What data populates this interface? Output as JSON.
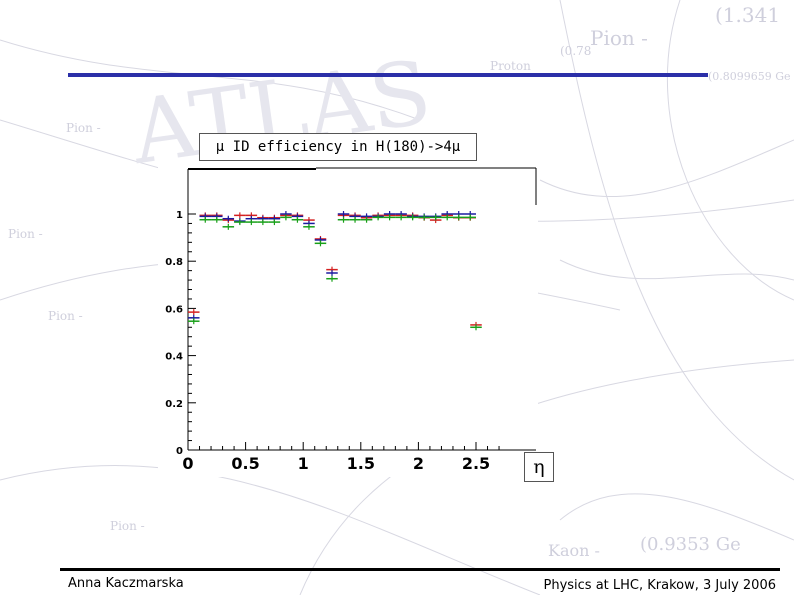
{
  "slide": {
    "footer_left": "Anna Kaczmarska",
    "footer_right": "Physics at LHC, Krakow,  3 July 2006",
    "rule_color": "#2b2fa8"
  },
  "background": {
    "watermark": "ATLAS",
    "labels": [
      "Pion -",
      "Proton",
      "(0.78",
      "(1.341",
      "Pion -",
      "Pion -",
      "Pion -",
      "Pion -",
      "Kaon -",
      "(0.9353 Ge",
      "(0.8099659 Ge"
    ]
  },
  "chart_data": {
    "type": "scatter",
    "title": "μ ID efficiency in H(180)->4μ",
    "xlabel": "η",
    "ylabel": "",
    "xlim": [
      0,
      2.75
    ],
    "ylim": [
      0,
      1.2
    ],
    "xticks": [
      0,
      0.5,
      1,
      1.5,
      2,
      2.5
    ],
    "xtick_labels": [
      "0",
      "0.5",
      "1",
      "1.5",
      "2",
      "2.5"
    ],
    "yticks": [
      0,
      0.2,
      0.4,
      0.6,
      0.8,
      1
    ],
    "ytick_labels": [
      "0",
      "0.2",
      "0.4",
      "0.6",
      "0.8",
      "1"
    ],
    "error_bars": true,
    "grid": false,
    "x": [
      0.05,
      0.15,
      0.25,
      0.35,
      0.45,
      0.55,
      0.65,
      0.75,
      0.85,
      0.95,
      1.05,
      1.15,
      1.25,
      1.35,
      1.45,
      1.55,
      1.65,
      1.75,
      1.85,
      1.95,
      2.05,
      2.15,
      2.25,
      2.35,
      2.45
    ],
    "series": [
      {
        "color": "#d42020",
        "values": [
          0.58,
          0.99,
          0.99,
          0.97,
          0.99,
          0.99,
          0.98,
          0.98,
          0.99,
          0.99,
          0.97,
          0.89,
          0.76,
          0.99,
          0.99,
          0.98,
          0.99,
          0.99,
          0.99,
          0.99,
          0.98,
          0.97,
          0.99,
          0.98,
          0.98
        ]
      },
      {
        "color": "#1a1aa0",
        "values": [
          0.56,
          0.99,
          0.99,
          0.98,
          0.97,
          0.98,
          0.98,
          0.98,
          1.0,
          0.99,
          0.96,
          0.89,
          0.75,
          1.0,
          0.99,
          0.99,
          0.99,
          1.0,
          1.0,
          0.99,
          0.99,
          0.99,
          1.0,
          1.0,
          1.0
        ]
      },
      {
        "color": "#18a018",
        "values": [
          0.55,
          0.98,
          0.98,
          0.95,
          0.97,
          0.97,
          0.97,
          0.97,
          0.99,
          0.98,
          0.95,
          0.88,
          0.73,
          0.98,
          0.98,
          0.98,
          0.99,
          0.99,
          0.99,
          0.99,
          0.99,
          0.99,
          0.99,
          0.99,
          0.99
        ]
      }
    ],
    "extra_points": [
      {
        "x": 2.5,
        "y": 0.53,
        "color": "#d42020"
      },
      {
        "x": 2.5,
        "y": 0.52,
        "color": "#18a018"
      }
    ]
  }
}
